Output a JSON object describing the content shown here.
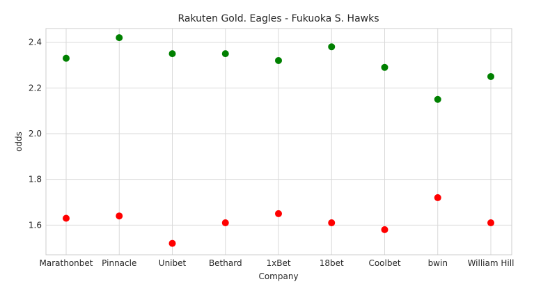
{
  "chart_data": {
    "type": "scatter",
    "title": "Rakuten Gold. Eagles - Fukuoka S. Hawks",
    "xlabel": "Company",
    "ylabel": "odds",
    "categories": [
      "Marathonbet",
      "Pinnacle",
      "Unibet",
      "Bethard",
      "1xBet",
      "18bet",
      "Coolbet",
      "bwin",
      "William Hill"
    ],
    "ylim": [
      1.47,
      2.46
    ],
    "yticks": [
      1.6,
      1.8,
      2.0,
      2.2,
      2.4
    ],
    "ytick_labels": [
      "1.6",
      "1.8",
      "2.0",
      "2.2",
      "2.4"
    ],
    "grid": true,
    "series": [
      {
        "color": "#008000",
        "values": [
          2.33,
          2.42,
          2.35,
          2.35,
          2.32,
          2.38,
          2.29,
          2.15,
          2.25
        ]
      },
      {
        "color": "#ff0000",
        "values": [
          1.63,
          1.64,
          1.52,
          1.61,
          1.65,
          1.61,
          1.58,
          1.72,
          1.61
        ]
      }
    ]
  }
}
